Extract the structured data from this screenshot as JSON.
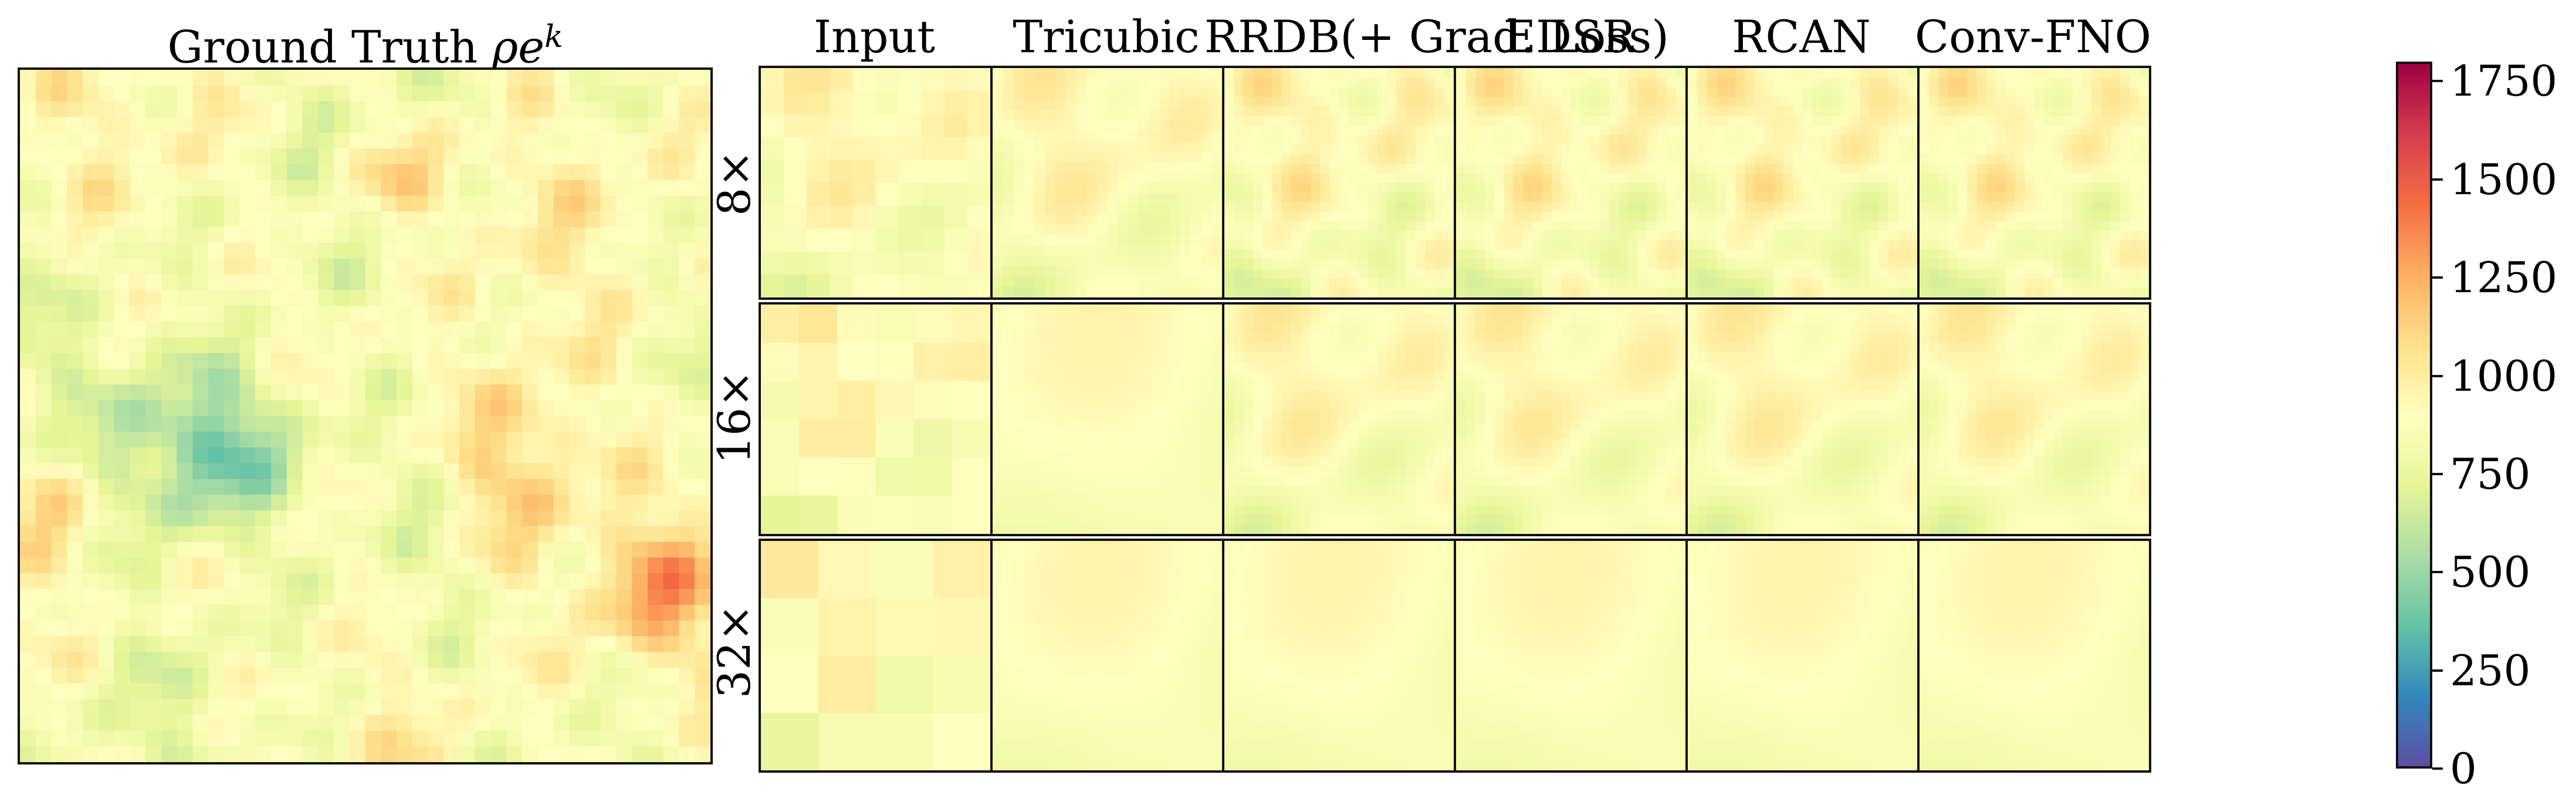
{
  "ground_truth": {
    "title_prefix": "Ground Truth ",
    "symbol": "ρe",
    "superscript": "k"
  },
  "columns": [
    "Input",
    "Tricubic",
    "RRDB(+ Grad. Loss)",
    "EDSR",
    "RCAN",
    "Conv-FNO"
  ],
  "rows": [
    "8×",
    "16×",
    "32×"
  ],
  "colorbar": {
    "colormap": "Spectral_r",
    "ticks": [
      "0",
      "250",
      "500",
      "750",
      "1000",
      "1250",
      "1500",
      "1750"
    ],
    "stops": [
      "#5e4fa2",
      "#3288bd",
      "#66c2a5",
      "#abdda4",
      "#e6f598",
      "#ffffbf",
      "#fee08b",
      "#fdae61",
      "#f46d43",
      "#d53e4f",
      "#9e0142"
    ]
  }
}
